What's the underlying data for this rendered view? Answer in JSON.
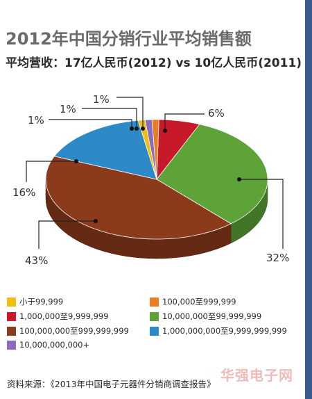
{
  "title": "2012年中国分销行业平均销售额",
  "subtitle": "平均营收：17亿人民币(2012) vs 10亿人民币(2011)",
  "source": "资料来源：《2013年中国电子元器件分销商调查报告》",
  "watermark": "华强电子网",
  "chart_data": {
    "type": "pie",
    "style": "3d",
    "title": "2012年中国分销行业平均销售额",
    "slices": [
      {
        "label": "小于99,999",
        "value": 1,
        "display": "1%",
        "color": "#f2bd12"
      },
      {
        "label": "100,000至999,999",
        "value": 1,
        "display": "1%",
        "color": "#e87d24"
      },
      {
        "label": "1,000,000至9,999,999",
        "value": 6,
        "display": "6%",
        "color": "#c8192a"
      },
      {
        "label": "10,000,000至99,999,999",
        "value": 32,
        "display": "32%",
        "color": "#5da337"
      },
      {
        "label": "100,000,000至999,999,999",
        "value": 43,
        "display": "43%",
        "color": "#8b3a1c"
      },
      {
        "label": "1,000,000,000至9,999,999,999",
        "value": 16,
        "display": "16%",
        "color": "#2d8ac6"
      },
      {
        "label": "10,000,000,000+",
        "value": 1,
        "display": "1%",
        "color": "#8a6bbd"
      }
    ]
  }
}
